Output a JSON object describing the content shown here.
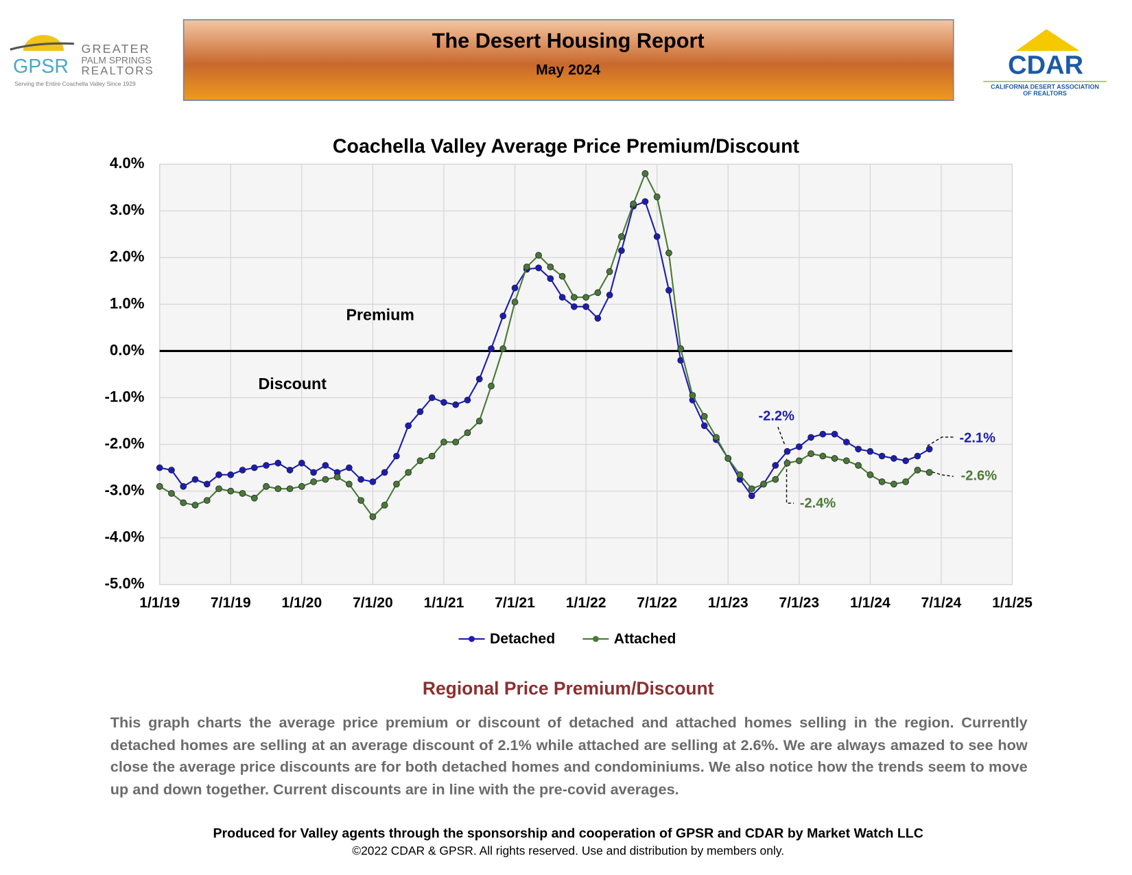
{
  "header": {
    "title": "The Desert Housing Report",
    "subtitle": "May 2024"
  },
  "logo_left": {
    "acronym": "GPSR",
    "line1": "GREATER",
    "line2": "PALM SPRINGS",
    "line3": "REALTORS",
    "tagline": "Serving the Entire Coachella Valley Since 1929"
  },
  "logo_right": {
    "acronym": "CDAR",
    "line1": "CALIFORNIA DESERT ASSOCIATION",
    "line2": "OF REALTORS"
  },
  "chart_data": {
    "type": "line",
    "title": "Coachella Valley Average Price Premium/Discount",
    "x": [
      "2019-01-01",
      "2019-02-01",
      "2019-03-01",
      "2019-04-01",
      "2019-05-01",
      "2019-06-01",
      "2019-07-01",
      "2019-08-01",
      "2019-09-01",
      "2019-10-01",
      "2019-11-01",
      "2019-12-01",
      "2020-01-01",
      "2020-02-01",
      "2020-03-01",
      "2020-04-01",
      "2020-05-01",
      "2020-06-01",
      "2020-07-01",
      "2020-08-01",
      "2020-09-01",
      "2020-10-01",
      "2020-11-01",
      "2020-12-01",
      "2021-01-01",
      "2021-02-01",
      "2021-03-01",
      "2021-04-01",
      "2021-05-01",
      "2021-06-01",
      "2021-07-01",
      "2021-08-01",
      "2021-09-01",
      "2021-10-01",
      "2021-11-01",
      "2021-12-01",
      "2022-01-01",
      "2022-02-01",
      "2022-03-01",
      "2022-04-01",
      "2022-05-01",
      "2022-06-01",
      "2022-07-01",
      "2022-08-01",
      "2022-09-01",
      "2022-10-01",
      "2022-11-01",
      "2022-12-01",
      "2023-01-01",
      "2023-02-01",
      "2023-03-01",
      "2023-04-01",
      "2023-05-01",
      "2023-06-01",
      "2023-07-01",
      "2023-08-01",
      "2023-09-01",
      "2023-10-01",
      "2023-11-01",
      "2023-12-01",
      "2024-01-01",
      "2024-02-01",
      "2024-03-01",
      "2024-04-01",
      "2024-05-01",
      "2024-06-01"
    ],
    "series": [
      {
        "name": "Detached",
        "color": "#1c1cb4",
        "values": [
          -2.5,
          -2.55,
          -2.9,
          -2.75,
          -2.85,
          -2.65,
          -2.65,
          -2.55,
          -2.5,
          -2.45,
          -2.4,
          -2.55,
          -2.4,
          -2.6,
          -2.45,
          -2.6,
          -2.5,
          -2.75,
          -2.8,
          -2.6,
          -2.25,
          -1.6,
          -1.3,
          -1.0,
          -1.1,
          -1.15,
          -1.05,
          -0.6,
          0.05,
          0.75,
          1.35,
          1.75,
          1.78,
          1.55,
          1.15,
          0.95,
          0.95,
          0.7,
          1.2,
          2.15,
          3.1,
          3.2,
          2.45,
          1.3,
          -0.2,
          -1.05,
          -1.6,
          -1.9,
          -2.3,
          -2.75,
          -3.1,
          -2.85,
          -2.45,
          -2.15,
          -2.05,
          -1.85,
          -1.78,
          -1.78,
          -1.95,
          -2.1,
          -2.15,
          -2.25,
          -2.3,
          -2.35,
          -2.25,
          -2.1
        ]
      },
      {
        "name": "Attached",
        "color": "#4a7a35",
        "values": [
          -2.9,
          -3.05,
          -3.25,
          -3.3,
          -3.2,
          -2.95,
          -3.0,
          -3.05,
          -3.15,
          -2.9,
          -2.95,
          -2.95,
          -2.9,
          -2.8,
          -2.75,
          -2.7,
          -2.85,
          -3.2,
          -3.55,
          -3.3,
          -2.85,
          -2.6,
          -2.35,
          -2.25,
          -1.95,
          -1.95,
          -1.75,
          -1.5,
          -0.75,
          0.05,
          1.05,
          1.8,
          2.05,
          1.8,
          1.6,
          1.15,
          1.15,
          1.25,
          1.7,
          2.45,
          3.15,
          3.8,
          3.3,
          2.1,
          0.05,
          -0.95,
          -1.4,
          -1.85,
          -2.3,
          -2.65,
          -2.95,
          -2.85,
          -2.75,
          -2.4,
          -2.35,
          -2.2,
          -2.25,
          -2.3,
          -2.35,
          -2.45,
          -2.65,
          -2.8,
          -2.85,
          -2.8,
          -2.55,
          -2.6
        ]
      }
    ],
    "xlim": [
      "2019-01-01",
      "2025-01-01"
    ],
    "xticks": [
      {
        "value": "2019-01-01",
        "label": "1/1/19"
      },
      {
        "value": "2019-07-01",
        "label": "7/1/19"
      },
      {
        "value": "2020-01-01",
        "label": "1/1/20"
      },
      {
        "value": "2020-07-01",
        "label": "7/1/20"
      },
      {
        "value": "2021-01-01",
        "label": "1/1/21"
      },
      {
        "value": "2021-07-01",
        "label": "7/1/21"
      },
      {
        "value": "2022-01-01",
        "label": "1/1/22"
      },
      {
        "value": "2022-07-01",
        "label": "7/1/22"
      },
      {
        "value": "2023-01-01",
        "label": "1/1/23"
      },
      {
        "value": "2023-07-01",
        "label": "7/1/23"
      },
      {
        "value": "2024-01-01",
        "label": "1/1/24"
      },
      {
        "value": "2024-07-01",
        "label": "7/1/24"
      },
      {
        "value": "2025-01-01",
        "label": "1/1/25"
      }
    ],
    "ylim": [
      -5,
      4
    ],
    "yticks": [
      {
        "value": -5,
        "label": "-5.0%"
      },
      {
        "value": -4,
        "label": "-4.0%"
      },
      {
        "value": -3,
        "label": "-3.0%"
      },
      {
        "value": -2,
        "label": "-2.0%"
      },
      {
        "value": -1,
        "label": "-1.0%"
      },
      {
        "value": 0,
        "label": "0.0%"
      },
      {
        "value": 1,
        "label": "1.0%"
      },
      {
        "value": 2,
        "label": "2.0%"
      },
      {
        "value": 3,
        "label": "3.0%"
      },
      {
        "value": 4,
        "label": "4.0%"
      }
    ],
    "grid": true,
    "zero_line": true,
    "legend": "bottom",
    "annotations": [
      "Premium",
      "Discount",
      "-2.2%",
      "-2.4%",
      "-2.1%",
      "-2.6%"
    ]
  },
  "section": {
    "title": "Regional Price Premium/Discount",
    "body": "This graph charts the average price premium or discount of detached and attached homes selling in the region. Currently detached homes are selling at an average discount of 2.1% while attached are selling at 2.6%. We are always amazed to see how close the average price discounts are for both detached homes and condominiums. We also notice how the trends seem to move up and down together. Current discounts are in line with the pre-covid averages."
  },
  "footer": {
    "line1": "Produced for Valley agents through the sponsorship and cooperation of GPSR and CDAR by Market Watch LLC",
    "line2": "©2022 CDAR & GPSR.  All rights reserved.  Use and distribution by members only."
  }
}
